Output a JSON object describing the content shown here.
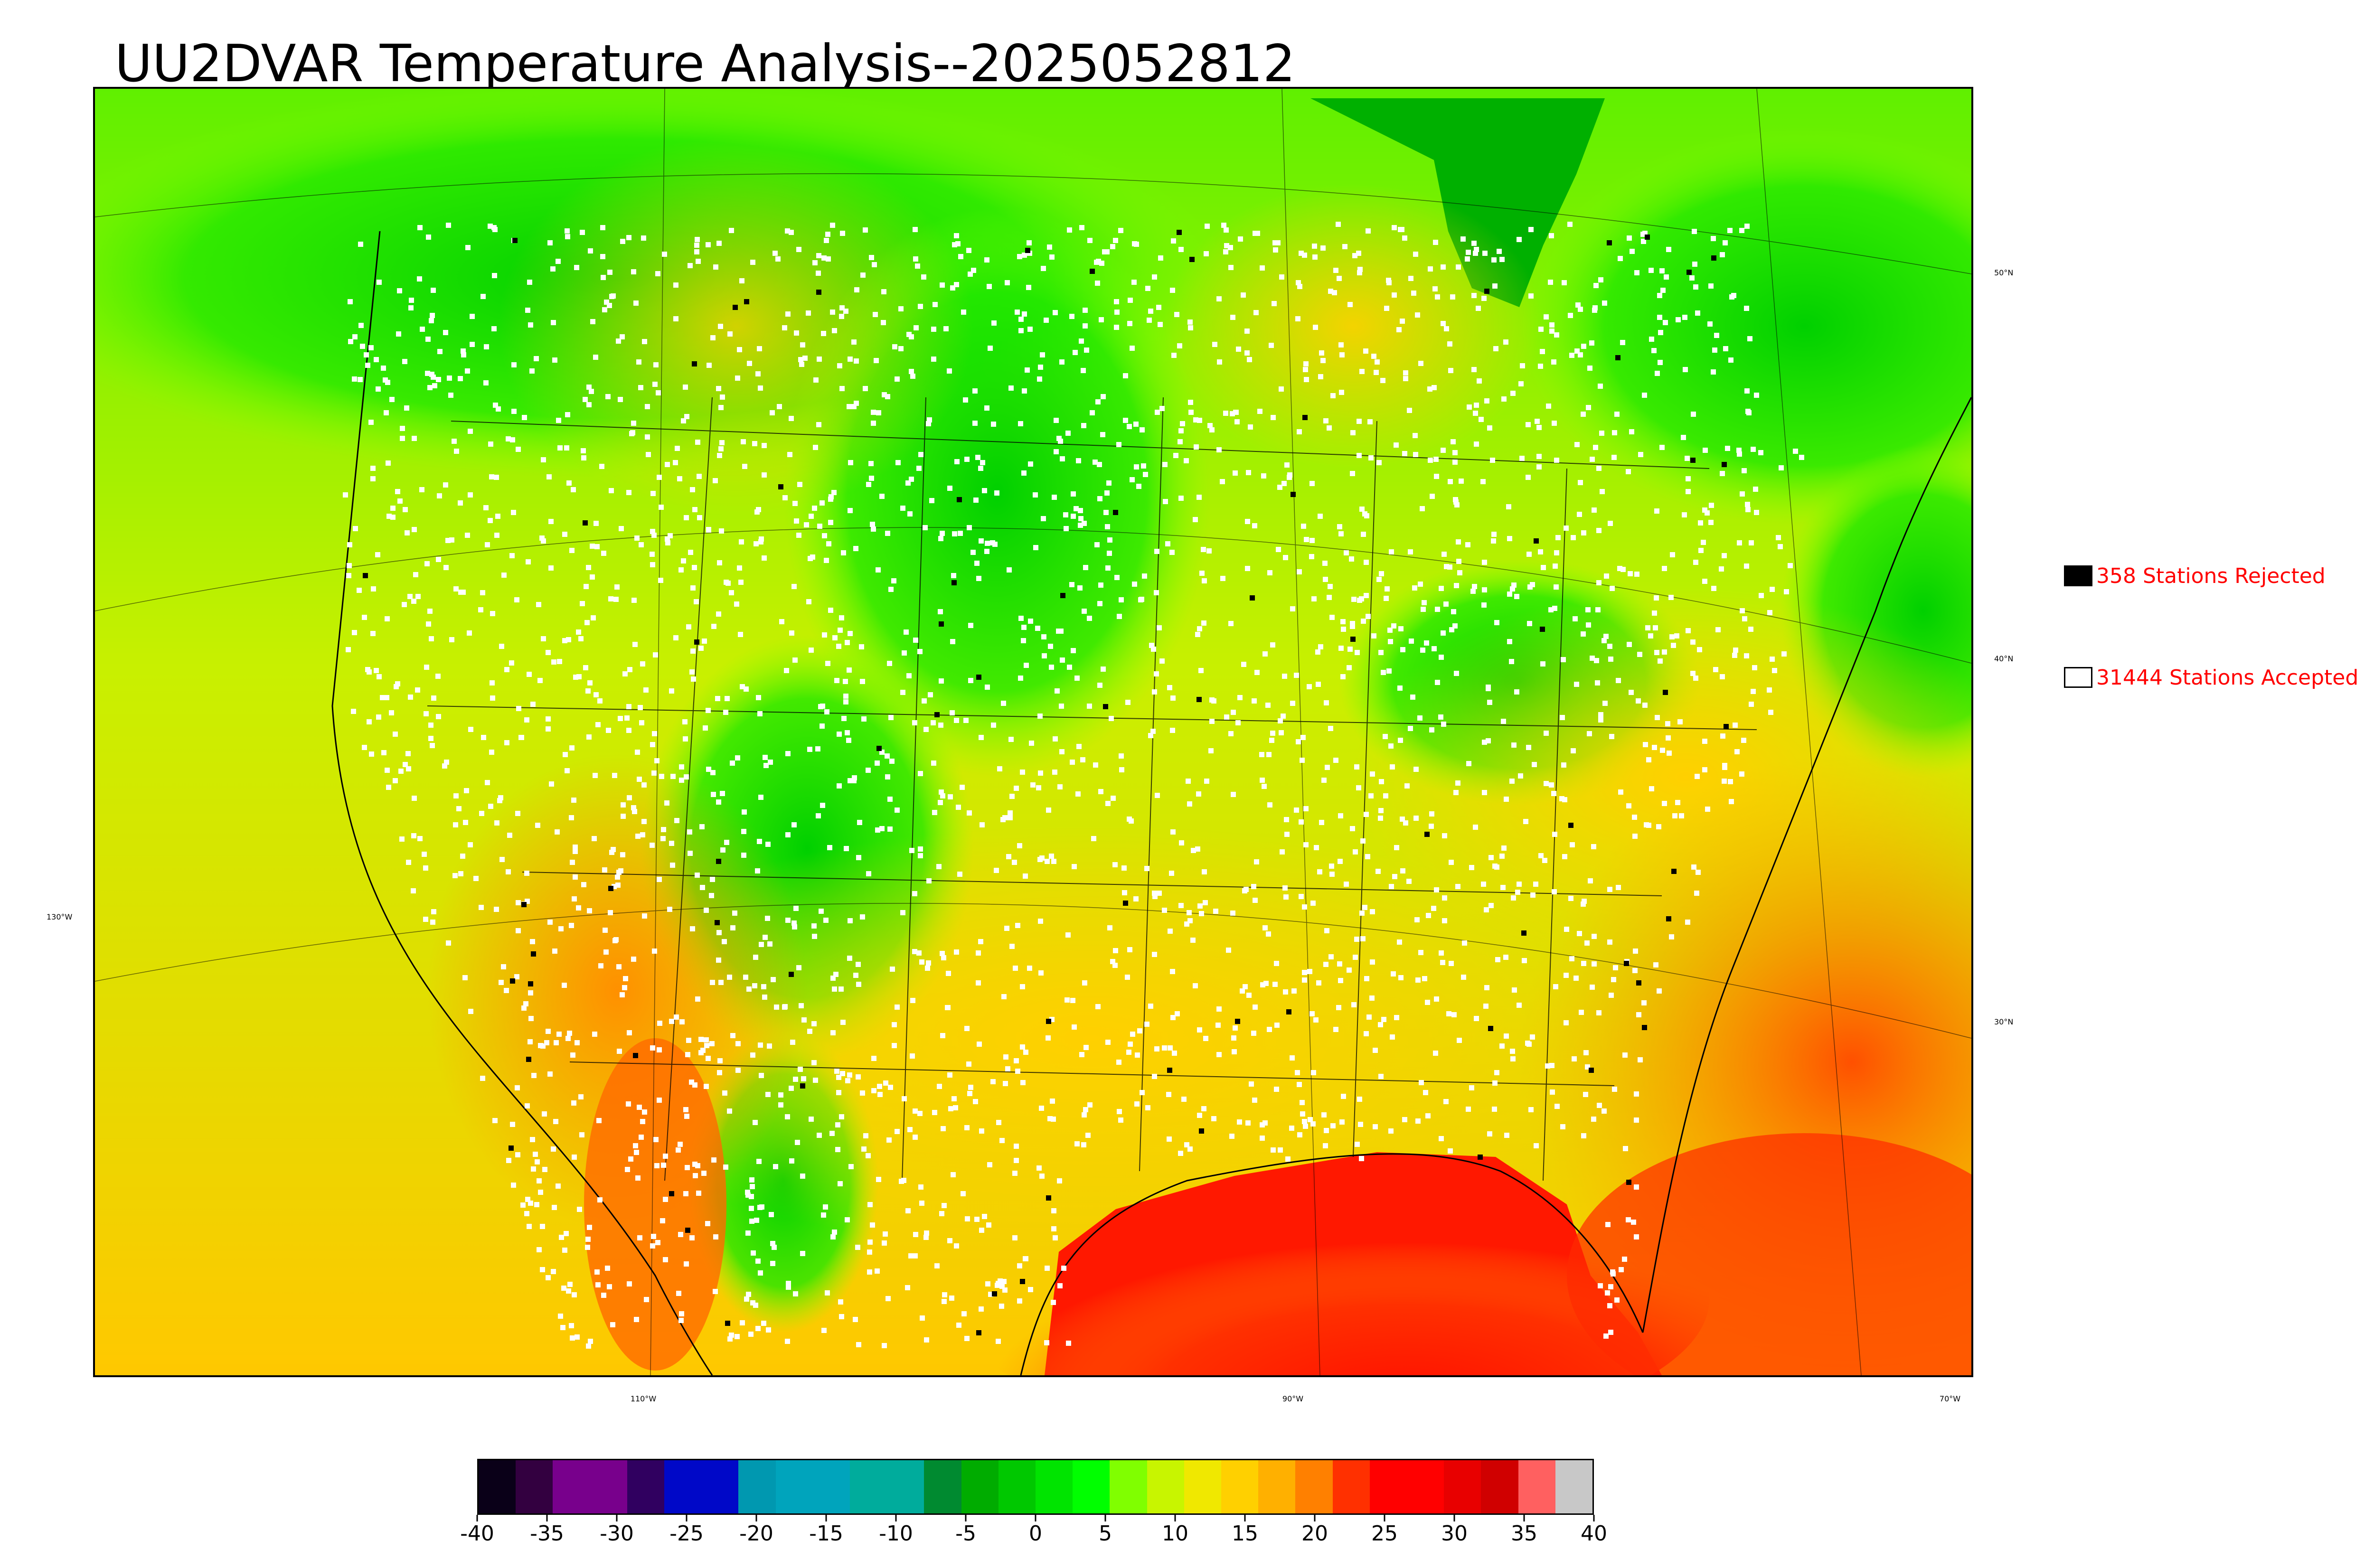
{
  "title": "UU2DVAR Temperature Analysis--2025052812",
  "map": {
    "kind": "temperature-analysis-map",
    "region": "CONUS",
    "lat_labels": [
      "50°N",
      "40°N",
      "30°N"
    ],
    "lon_labels": [
      "110°W",
      "90°W",
      "70°W"
    ],
    "left_label": "130°W"
  },
  "legend": {
    "rejected": {
      "label": "358 Stations Rejected",
      "swatch_color": "#000000"
    },
    "accepted": {
      "label": "31444 Stations Accepted",
      "swatch_color": "#ffffff"
    },
    "text_color": "#ff0000"
  },
  "colorbar": {
    "min": -40,
    "max": 40,
    "tick_labels": [
      "-40",
      "-35",
      "-30",
      "-25",
      "-20",
      "-15",
      "-10",
      "-5",
      "0",
      "5",
      "10",
      "15",
      "20",
      "25",
      "30",
      "35",
      "40"
    ],
    "colors": [
      "#0a0018",
      "#330040",
      "#78008c",
      "#78008c",
      "#300060",
      "#0008c8",
      "#0008c8",
      "#0098b0",
      "#00a4bc",
      "#00a4bc",
      "#00ac9c",
      "#00ac9c",
      "#008a30",
      "#00ac00",
      "#00c800",
      "#00e400",
      "#00ff00",
      "#80ff00",
      "#c8f500",
      "#f0e800",
      "#ffd000",
      "#ffb000",
      "#ff8000",
      "#ff3000",
      "#ff0000",
      "#ff0000",
      "#e80000",
      "#d00000",
      "#ff6060",
      "#c8c8c8"
    ]
  }
}
